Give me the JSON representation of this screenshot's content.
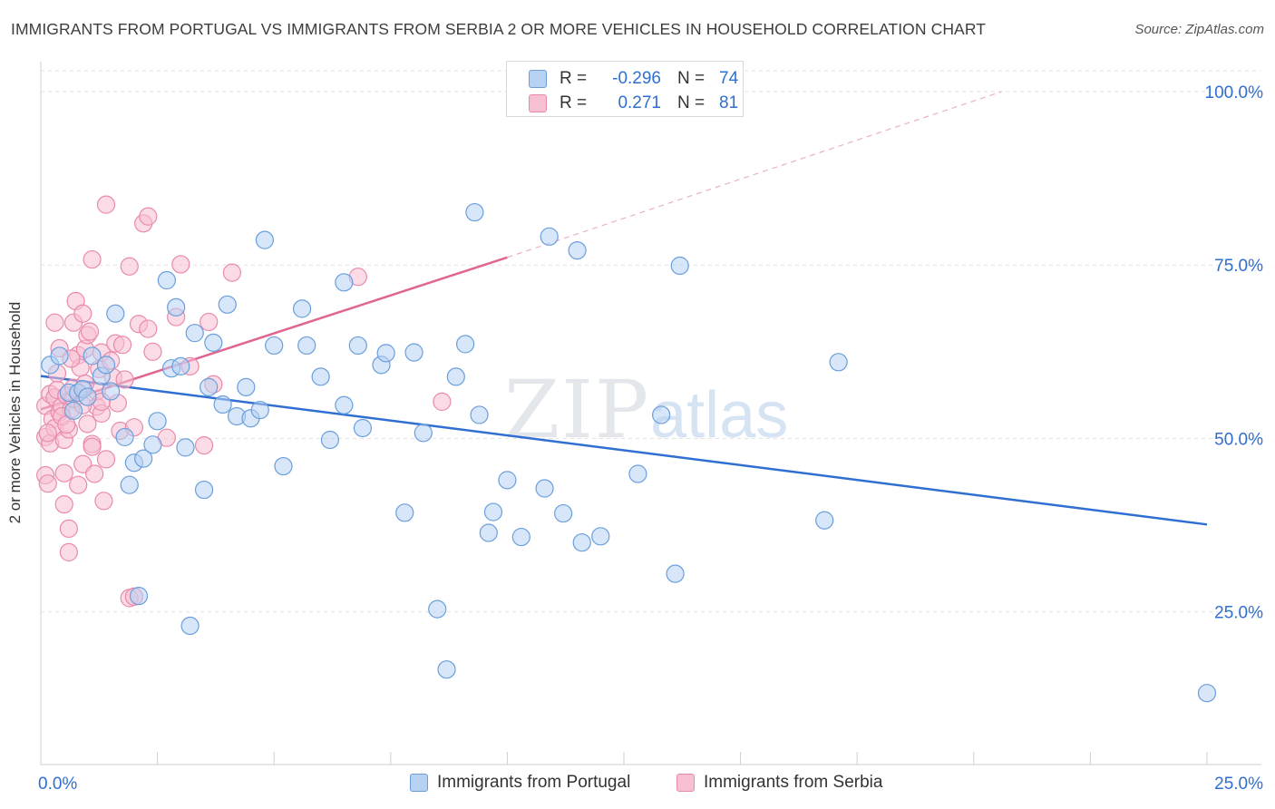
{
  "title": "IMMIGRANTS FROM PORTUGAL VS IMMIGRANTS FROM SERBIA 2 OR MORE VEHICLES IN HOUSEHOLD CORRELATION CHART",
  "source": "Source: ZipAtlas.com",
  "watermark": {
    "zip": "ZIP",
    "atlas": "atlas"
  },
  "stats": {
    "portugal": {
      "r_label": "R =",
      "r_value": "-0.296",
      "n_label": "N =",
      "n_value": "74"
    },
    "serbia": {
      "r_label": "R =",
      "r_value": "0.271",
      "n_label": "N =",
      "n_value": "81"
    }
  },
  "colors": {
    "portugal_fill": "#b7d1f2",
    "portugal_stroke": "#6a9fdc",
    "portugal_line": "#2f6fd1",
    "serbia_fill": "#f7bfd2",
    "serbia_stroke": "#e98aab",
    "serbia_line": "#e06592",
    "grid": "#e2e2e2",
    "tick_label": "#2f6fd1"
  },
  "chart_data": {
    "type": "scatter",
    "title": "IMMIGRANTS FROM PORTUGAL VS IMMIGRANTS FROM SERBIA 2 OR MORE VEHICLES IN HOUSEHOLD CORRELATION CHART",
    "xlabel": "",
    "ylabel": "2 or more Vehicles in Household",
    "xlim": [
      0,
      25
    ],
    "ylim": [
      3,
      103
    ],
    "x_tick_labels": [
      {
        "value": 0,
        "label": "0.0%"
      },
      {
        "value": 25,
        "label": "25.0%"
      }
    ],
    "y_ticks": [
      {
        "value": 25,
        "label": "25.0%"
      },
      {
        "value": 50,
        "label": "50.0%"
      },
      {
        "value": 75,
        "label": "75.0%"
      },
      {
        "value": 100,
        "label": "100.0%"
      }
    ],
    "grid": true,
    "legend_position": "bottom",
    "series": [
      {
        "name": "Immigrants from Portugal",
        "trend": {
          "x": [
            0,
            25
          ],
          "y": [
            59.0,
            37.6
          ]
        },
        "points": [
          [
            0.2,
            60.6
          ],
          [
            0.4,
            61.9
          ],
          [
            0.6,
            56.6
          ],
          [
            0.7,
            54.0
          ],
          [
            0.8,
            56.6
          ],
          [
            0.9,
            57.1
          ],
          [
            1.1,
            61.9
          ],
          [
            1.3,
            59.0
          ],
          [
            1.4,
            60.6
          ],
          [
            1.5,
            56.8
          ],
          [
            1.6,
            68.0
          ],
          [
            1.8,
            50.2
          ],
          [
            1.9,
            43.3
          ],
          [
            2.0,
            46.5
          ],
          [
            2.2,
            47.1
          ],
          [
            2.4,
            49.1
          ],
          [
            2.5,
            52.5
          ],
          [
            2.7,
            72.8
          ],
          [
            2.8,
            60.1
          ],
          [
            2.9,
            68.9
          ],
          [
            3.0,
            60.4
          ],
          [
            3.1,
            48.7
          ],
          [
            3.2,
            23.0
          ],
          [
            3.3,
            65.2
          ],
          [
            3.5,
            42.6
          ],
          [
            3.6,
            57.4
          ],
          [
            3.7,
            63.8
          ],
          [
            3.9,
            54.9
          ],
          [
            4.0,
            69.3
          ],
          [
            4.2,
            53.2
          ],
          [
            4.4,
            57.4
          ],
          [
            4.5,
            52.9
          ],
          [
            4.7,
            54.1
          ],
          [
            4.8,
            78.6
          ],
          [
            5.0,
            63.4
          ],
          [
            5.2,
            46.0
          ],
          [
            5.6,
            68.7
          ],
          [
            5.7,
            63.4
          ],
          [
            6.0,
            58.9
          ],
          [
            6.2,
            49.8
          ],
          [
            6.5,
            72.5
          ],
          [
            6.5,
            54.8
          ],
          [
            6.8,
            63.4
          ],
          [
            6.9,
            51.5
          ],
          [
            7.3,
            60.6
          ],
          [
            7.4,
            62.3
          ],
          [
            7.8,
            39.3
          ],
          [
            8.0,
            62.4
          ],
          [
            8.2,
            50.8
          ],
          [
            8.5,
            25.4
          ],
          [
            8.7,
            16.7
          ],
          [
            8.9,
            58.9
          ],
          [
            9.1,
            63.6
          ],
          [
            9.3,
            82.6
          ],
          [
            9.4,
            53.4
          ],
          [
            9.6,
            36.4
          ],
          [
            9.7,
            39.4
          ],
          [
            10.0,
            44.0
          ],
          [
            10.3,
            35.8
          ],
          [
            10.8,
            42.8
          ],
          [
            10.9,
            79.1
          ],
          [
            11.2,
            39.2
          ],
          [
            11.5,
            77.1
          ],
          [
            11.6,
            35.0
          ],
          [
            12.0,
            35.9
          ],
          [
            12.8,
            44.9
          ],
          [
            13.3,
            53.4
          ],
          [
            13.6,
            30.5
          ],
          [
            13.7,
            74.9
          ],
          [
            16.8,
            38.2
          ],
          [
            17.1,
            61.0
          ],
          [
            25.0,
            13.3
          ],
          [
            2.1,
            27.3
          ],
          [
            1.0,
            56.0
          ]
        ]
      },
      {
        "name": "Immigrants from Serbia",
        "trend": {
          "x": [
            0,
            10
          ],
          "y": [
            54.2,
            76.1
          ]
        },
        "trend_dashed": {
          "x": [
            10,
            20.6
          ],
          "y": [
            76.1,
            100.0
          ]
        },
        "points": [
          [
            0.1,
            54.7
          ],
          [
            0.1,
            44.7
          ],
          [
            0.1,
            50.2
          ],
          [
            0.15,
            43.5
          ],
          [
            0.2,
            56.4
          ],
          [
            0.2,
            49.3
          ],
          [
            0.25,
            52.8
          ],
          [
            0.3,
            55.9
          ],
          [
            0.3,
            51.5
          ],
          [
            0.3,
            66.7
          ],
          [
            0.35,
            57.0
          ],
          [
            0.4,
            53.8
          ],
          [
            0.4,
            63.0
          ],
          [
            0.45,
            54.6
          ],
          [
            0.5,
            49.8
          ],
          [
            0.5,
            40.5
          ],
          [
            0.5,
            45.0
          ],
          [
            0.55,
            56.2
          ],
          [
            0.6,
            33.6
          ],
          [
            0.6,
            37.0
          ],
          [
            0.6,
            51.3
          ],
          [
            0.65,
            54.2
          ],
          [
            0.7,
            55.7
          ],
          [
            0.7,
            57.3
          ],
          [
            0.7,
            66.7
          ],
          [
            0.75,
            69.8
          ],
          [
            0.8,
            43.3
          ],
          [
            0.8,
            62.0
          ],
          [
            0.85,
            60.2
          ],
          [
            0.9,
            68.0
          ],
          [
            0.9,
            46.3
          ],
          [
            0.95,
            62.9
          ],
          [
            1.0,
            52.1
          ],
          [
            1.0,
            64.9
          ],
          [
            1.05,
            65.4
          ],
          [
            1.1,
            49.2
          ],
          [
            1.1,
            75.8
          ],
          [
            1.15,
            44.9
          ],
          [
            1.2,
            54.6
          ],
          [
            1.2,
            56.8
          ],
          [
            1.25,
            60.0
          ],
          [
            1.3,
            53.6
          ],
          [
            1.3,
            62.4
          ],
          [
            1.35,
            41.0
          ],
          [
            1.4,
            83.7
          ],
          [
            1.4,
            47.0
          ],
          [
            1.5,
            61.2
          ],
          [
            1.55,
            58.8
          ],
          [
            1.6,
            63.7
          ],
          [
            1.65,
            55.1
          ],
          [
            1.7,
            51.1
          ],
          [
            1.8,
            58.5
          ],
          [
            1.9,
            27.0
          ],
          [
            1.9,
            74.8
          ],
          [
            2.0,
            51.6
          ],
          [
            2.1,
            66.5
          ],
          [
            2.2,
            81.0
          ],
          [
            2.3,
            82.0
          ],
          [
            2.3,
            65.8
          ],
          [
            2.4,
            62.5
          ],
          [
            2.7,
            50.1
          ],
          [
            2.9,
            67.5
          ],
          [
            3.0,
            75.1
          ],
          [
            3.2,
            60.4
          ],
          [
            3.5,
            49.0
          ],
          [
            3.6,
            66.8
          ],
          [
            3.7,
            57.8
          ],
          [
            4.1,
            73.9
          ],
          [
            6.8,
            73.3
          ],
          [
            8.6,
            55.3
          ],
          [
            0.15,
            50.8
          ],
          [
            0.45,
            53.2
          ],
          [
            0.55,
            52.0
          ],
          [
            0.9,
            54.8
          ],
          [
            1.1,
            48.8
          ],
          [
            1.3,
            55.3
          ],
          [
            0.35,
            59.4
          ],
          [
            0.65,
            61.5
          ],
          [
            0.95,
            57.9
          ],
          [
            2.0,
            27.2
          ],
          [
            1.75,
            63.5
          ]
        ]
      }
    ]
  },
  "legend_bottom": [
    {
      "label": "Immigrants from Portugal"
    },
    {
      "label": "Immigrants from Serbia"
    }
  ]
}
